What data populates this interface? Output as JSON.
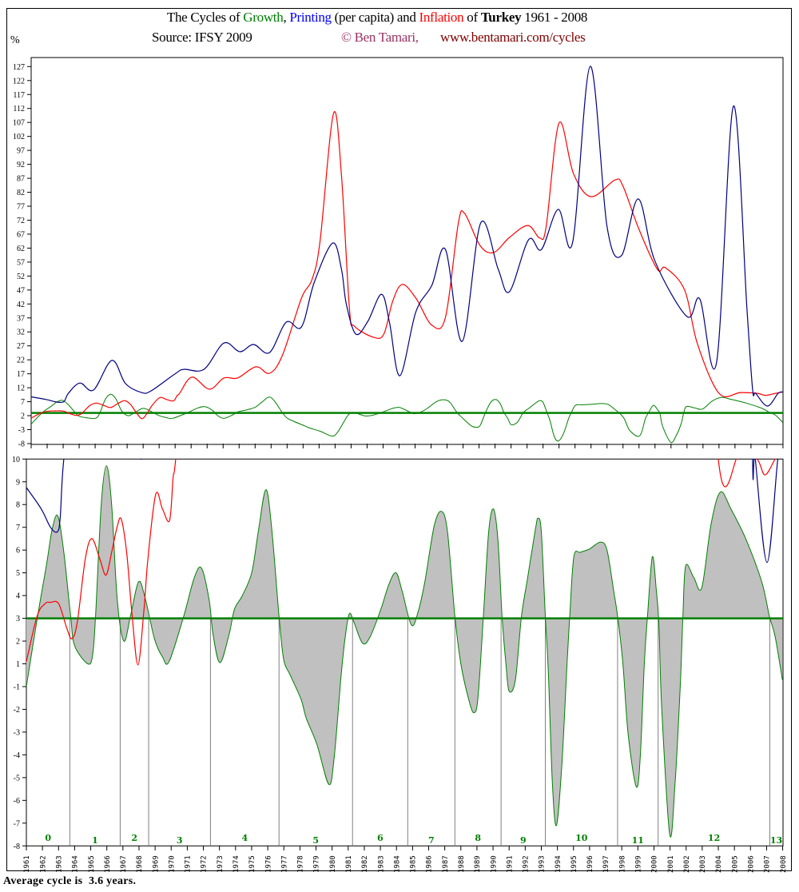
{
  "title": {
    "prefix": "The Cycles of ",
    "growth": "Growth",
    "comma": ", ",
    "printing": "Printing",
    "mid": " (per capita) and ",
    "inflation": "Inflation",
    "of": " of ",
    "country": "Turkey",
    "years": " 1961 - 2008"
  },
  "source": "Source: IFSY 2009",
  "copyright": "© Ben Tamari,",
  "website": "www.bentamari.com/cycles",
  "footer": "Average cycle is  3.6 years.",
  "colors": {
    "growth": "#008000",
    "printing": "#000080",
    "inflation": "#ff0000",
    "fill": "#c0c0c0",
    "cycle_line": "#808080",
    "copyright": "#993366",
    "website": "#800000"
  },
  "chart_data": [
    {
      "type": "line",
      "panel": "top",
      "ylabel": "%",
      "ylim": [
        -8,
        130
      ],
      "yticks": [
        127,
        122,
        117,
        112,
        107,
        102,
        97,
        92,
        87,
        82,
        77,
        72,
        67,
        62,
        57,
        52,
        47,
        42,
        37,
        32,
        27,
        22,
        17,
        12,
        7,
        2,
        -3,
        -8
      ],
      "xlim": [
        1961,
        2008
      ],
      "average_growth": 3.0,
      "series": [
        {
          "name": "Printing",
          "color": "#000080",
          "data": [
            [
              1961,
              8.75
            ],
            [
              1961.93,
              7.8
            ],
            [
              1962.5,
              7.0
            ],
            [
              1962.92,
              6.8
            ],
            [
              1963.1,
              7.4
            ],
            [
              1963.33,
              10
            ],
            [
              1964.05,
              13.7
            ],
            [
              1964.9,
              11.2
            ],
            [
              1966.05,
              21.8
            ],
            [
              1966.9,
              13.5
            ],
            [
              1967.9,
              10.3
            ],
            [
              1968.5,
              10.9
            ],
            [
              1970.05,
              17.2
            ],
            [
              1970.55,
              18.6
            ],
            [
              1971.8,
              18.6
            ],
            [
              1973.05,
              28
            ],
            [
              1974.05,
              24.9
            ],
            [
              1974.9,
              27.5
            ],
            [
              1975.9,
              24.6
            ],
            [
              1976.95,
              35.5
            ],
            [
              1977.9,
              33.8
            ],
            [
              1978.7,
              49.8
            ],
            [
              1979.85,
              63.8
            ],
            [
              1980.4,
              54.4
            ],
            [
              1980.7,
              42
            ],
            [
              1981.3,
              31.2
            ],
            [
              1982.05,
              35.8
            ],
            [
              1982.9,
              45.5
            ],
            [
              1983.4,
              35.5
            ],
            [
              1984.05,
              16.3
            ],
            [
              1985.05,
              39.2
            ],
            [
              1986.05,
              48.7
            ],
            [
              1986.9,
              61.5
            ],
            [
              1987.95,
              28.6
            ],
            [
              1989.1,
              71
            ],
            [
              1990.2,
              54.4
            ],
            [
              1990.9,
              46.4
            ],
            [
              1992.1,
              65
            ],
            [
              1992.9,
              61.5
            ],
            [
              1993.95,
              75.9
            ],
            [
              1994.85,
              64.1
            ],
            [
              1995.95,
              127.1
            ],
            [
              1997,
              69.8
            ],
            [
              1997.9,
              59.3
            ],
            [
              1998.95,
              79.6
            ],
            [
              2000.0,
              57.3
            ],
            [
              2002.0,
              37.5
            ],
            [
              2002.8,
              43.8
            ],
            [
              2003.85,
              21.2
            ],
            [
              2004.9,
              112.8
            ],
            [
              2005.75,
              40
            ],
            [
              2006.1,
              11.5
            ],
            [
              2006.3,
              10
            ],
            [
              2007.03,
              5.45
            ],
            [
              2007.7,
              10
            ],
            [
              2008,
              10.5
            ]
          ]
        },
        {
          "name": "Inflation",
          "color": "#ff0000",
          "data": [
            [
              1961,
              1.1
            ],
            [
              1961.67,
              3.1
            ],
            [
              1962.17,
              3.65
            ],
            [
              1962.5,
              3.7
            ],
            [
              1963.0,
              3.65
            ],
            [
              1963.5,
              2.6
            ],
            [
              1963.83,
              2.1
            ],
            [
              1964.17,
              2.85
            ],
            [
              1964.66,
              5.6
            ],
            [
              1965.07,
              6.5
            ],
            [
              1965.57,
              5.6
            ],
            [
              1965.95,
              4.9
            ],
            [
              1966.3,
              5.9
            ],
            [
              1966.65,
              7.05
            ],
            [
              1966.9,
              7.35
            ],
            [
              1967.23,
              5.9
            ],
            [
              1967.55,
              3.3
            ],
            [
              1967.93,
              0.9
            ],
            [
              1968.3,
              3.3
            ],
            [
              1968.55,
              5.6
            ],
            [
              1969.04,
              8.45
            ],
            [
              1969.46,
              7.8
            ],
            [
              1969.9,
              7.3
            ],
            [
              1970.12,
              9.2
            ],
            [
              1970.28,
              10
            ],
            [
              1971.05,
              15.8
            ],
            [
              1972.15,
              11.5
            ],
            [
              1973.05,
              15.5
            ],
            [
              1973.9,
              15.5
            ],
            [
              1975.05,
              19.5
            ],
            [
              1975.9,
              17.2
            ],
            [
              1976.7,
              23.5
            ],
            [
              1977.9,
              44.1
            ],
            [
              1978.55,
              50.7
            ],
            [
              1979.05,
              64.1
            ],
            [
              1979.9,
              110.2
            ],
            [
              1980.4,
              87.9
            ],
            [
              1980.9,
              40.1
            ],
            [
              1981.2,
              34.1
            ],
            [
              1982.4,
              30.1
            ],
            [
              1983.05,
              31.2
            ],
            [
              1983.6,
              43
            ],
            [
              1984.2,
              49
            ],
            [
              1985.05,
              44.1
            ],
            [
              1986.05,
              34.4
            ],
            [
              1986.9,
              37.2
            ],
            [
              1987.7,
              70.7
            ],
            [
              1988.1,
              74.4
            ],
            [
              1989.05,
              63
            ],
            [
              1989.9,
              60.4
            ],
            [
              1990.9,
              65.8
            ],
            [
              1992.05,
              70.1
            ],
            [
              1992.8,
              65.6
            ],
            [
              1993.2,
              69.8
            ],
            [
              1994.0,
              106.8
            ],
            [
              1994.9,
              88.7
            ],
            [
              1996.0,
              80.4
            ],
            [
              1997.5,
              86.4
            ],
            [
              1998.0,
              84.2
            ],
            [
              1999.0,
              68.7
            ],
            [
              2000.15,
              54.4
            ],
            [
              2000.65,
              55
            ],
            [
              2001.85,
              47
            ],
            [
              2002.65,
              27.8
            ],
            [
              2004.0,
              10
            ],
            [
              2005.35,
              10.3
            ],
            [
              2006.4,
              10.0
            ],
            [
              2006.9,
              9.3
            ],
            [
              2007.53,
              10
            ],
            [
              2008,
              10.5
            ]
          ]
        },
        {
          "name": "Growth",
          "color": "#008000",
          "ref": "growth"
        }
      ]
    },
    {
      "type": "area",
      "panel": "bottom",
      "ylim": [
        -8,
        10
      ],
      "yticks": [
        10,
        9,
        8,
        7,
        6,
        5,
        4,
        3,
        2,
        1,
        -1,
        -2,
        -3,
        -4,
        -5,
        -6,
        -7,
        -8
      ],
      "xlim": [
        1961,
        2008
      ],
      "xticks": [
        1961,
        1962,
        1963,
        1964,
        1965,
        1966,
        1967,
        1968,
        1969,
        1970,
        1971,
        1972,
        1973,
        1974,
        1975,
        1976,
        1977,
        1978,
        1979,
        1980,
        1981,
        1982,
        1983,
        1984,
        1985,
        1986,
        1987,
        1988,
        1989,
        1990,
        1991,
        1992,
        1993,
        1994,
        1995,
        1996,
        1997,
        1998,
        1999,
        2000,
        2001,
        2002,
        2003,
        2004,
        2005,
        2006,
        2007,
        2008
      ],
      "average_growth": 3.0,
      "growth": [
        [
          1961,
          -1
        ],
        [
          1961.7,
          3.1
        ],
        [
          1962.26,
          5.4
        ],
        [
          1962.6,
          6.9
        ],
        [
          1962.95,
          7.5
        ],
        [
          1963.33,
          5.9
        ],
        [
          1963.75,
          3.1
        ],
        [
          1964.0,
          1.8
        ],
        [
          1964.82,
          1.0
        ],
        [
          1965.12,
          1.4
        ],
        [
          1965.3,
          3.1
        ],
        [
          1965.65,
          8.0
        ],
        [
          1965.98,
          9.7
        ],
        [
          1966.3,
          8.0
        ],
        [
          1966.65,
          3.8
        ],
        [
          1967.06,
          2.0
        ],
        [
          1967.47,
          3.1
        ],
        [
          1967.97,
          4.6
        ],
        [
          1968.38,
          3.9
        ],
        [
          1968.96,
          2.1
        ],
        [
          1969.46,
          1.3
        ],
        [
          1969.87,
          1.1
        ],
        [
          1970.78,
          3.1
        ],
        [
          1971.44,
          4.8
        ],
        [
          1971.89,
          5.2
        ],
        [
          1972.36,
          3.8
        ],
        [
          1972.6,
          2.3
        ],
        [
          1973.03,
          1.05
        ],
        [
          1973.6,
          2.3
        ],
        [
          1973.93,
          3.4
        ],
        [
          1974.42,
          4.0
        ],
        [
          1975.0,
          5.0
        ],
        [
          1975.41,
          6.8
        ],
        [
          1975.88,
          8.65
        ],
        [
          1976.24,
          7.0
        ],
        [
          1976.7,
          3.1
        ],
        [
          1976.99,
          1.2
        ],
        [
          1977.4,
          0
        ],
        [
          1978.07,
          -1.56
        ],
        [
          1978.4,
          -2.4
        ],
        [
          1979.06,
          -3.55
        ],
        [
          1979.8,
          -5.3
        ],
        [
          1980.13,
          -4.1
        ],
        [
          1980.55,
          -0.2
        ],
        [
          1980.8,
          2.1
        ],
        [
          1981.07,
          3.2
        ],
        [
          1981.37,
          2.8
        ],
        [
          1981.9,
          1.9
        ],
        [
          1982.37,
          2.2
        ],
        [
          1983.03,
          3.4
        ],
        [
          1983.53,
          4.5
        ],
        [
          1983.97,
          5.0
        ],
        [
          1984.35,
          4.2
        ],
        [
          1984.93,
          2.7
        ],
        [
          1985.35,
          3.3
        ],
        [
          1985.76,
          4.6
        ],
        [
          1986.34,
          7.05
        ],
        [
          1986.8,
          7.7
        ],
        [
          1987.17,
          6.8
        ],
        [
          1987.63,
          3.1
        ],
        [
          1988.0,
          1.0
        ],
        [
          1988.5,
          -1.6
        ],
        [
          1988.82,
          -2.15
        ],
        [
          1989.07,
          -1.45
        ],
        [
          1989.4,
          3.1
        ],
        [
          1989.73,
          6.8
        ],
        [
          1990.03,
          7.8
        ],
        [
          1990.31,
          6.4
        ],
        [
          1990.56,
          3.1
        ],
        [
          1990.8,
          1.0
        ],
        [
          1991.0,
          -1.2
        ],
        [
          1991.39,
          -0.4
        ],
        [
          1991.77,
          3.1
        ],
        [
          1992.13,
          4.7
        ],
        [
          1992.63,
          6.9
        ],
        [
          1992.8,
          7.4
        ],
        [
          1993.0,
          6.8
        ],
        [
          1993.25,
          3.1
        ],
        [
          1993.44,
          0.2
        ],
        [
          1993.69,
          -5.3
        ],
        [
          1993.94,
          -7.1
        ],
        [
          1994.27,
          -4.5
        ],
        [
          1994.6,
          1.0
        ],
        [
          1994.77,
          3.1
        ],
        [
          1995.02,
          5.7
        ],
        [
          1995.43,
          5.9
        ],
        [
          1996.0,
          6.05
        ],
        [
          1996.67,
          6.35
        ],
        [
          1997.08,
          6.0
        ],
        [
          1997.5,
          4.2
        ],
        [
          1997.74,
          3.1
        ],
        [
          1998.07,
          1.0
        ],
        [
          1998.4,
          -3.1
        ],
        [
          1998.9,
          -5.4
        ],
        [
          1999.15,
          -4.1
        ],
        [
          1999.4,
          1.0
        ],
        [
          1999.6,
          3.1
        ],
        [
          1999.9,
          5.7
        ],
        [
          2000.15,
          4.2
        ],
        [
          2000.31,
          2.7
        ],
        [
          2000.48,
          -1.9
        ],
        [
          2000.98,
          -7.5
        ],
        [
          2001.31,
          -5.3
        ],
        [
          2001.64,
          -0.8
        ],
        [
          2001.8,
          3.1
        ],
        [
          2001.97,
          5.3
        ],
        [
          2002.47,
          4.8
        ],
        [
          2002.97,
          4.35
        ],
        [
          2003.55,
          7.15
        ],
        [
          2004.13,
          8.55
        ],
        [
          2004.79,
          7.8
        ],
        [
          2005.7,
          6.5
        ],
        [
          2006.7,
          4.6
        ],
        [
          2007.17,
          3.1
        ],
        [
          2007.53,
          2.2
        ],
        [
          2007.98,
          -0.4
        ]
      ],
      "cycle_boundaries": [
        1963.7,
        1966.83,
        1968.6,
        1972.44,
        1976.7,
        1981.27,
        1984.7,
        1987.63,
        1990.5,
        1993.25,
        1997.74,
        2000.26,
        2007.2
      ],
      "cycle_labels": [
        "0",
        "1",
        "2",
        "3",
        "4",
        "5",
        "6",
        "7",
        "8",
        "9",
        "10",
        "11",
        "12",
        "13"
      ]
    }
  ]
}
